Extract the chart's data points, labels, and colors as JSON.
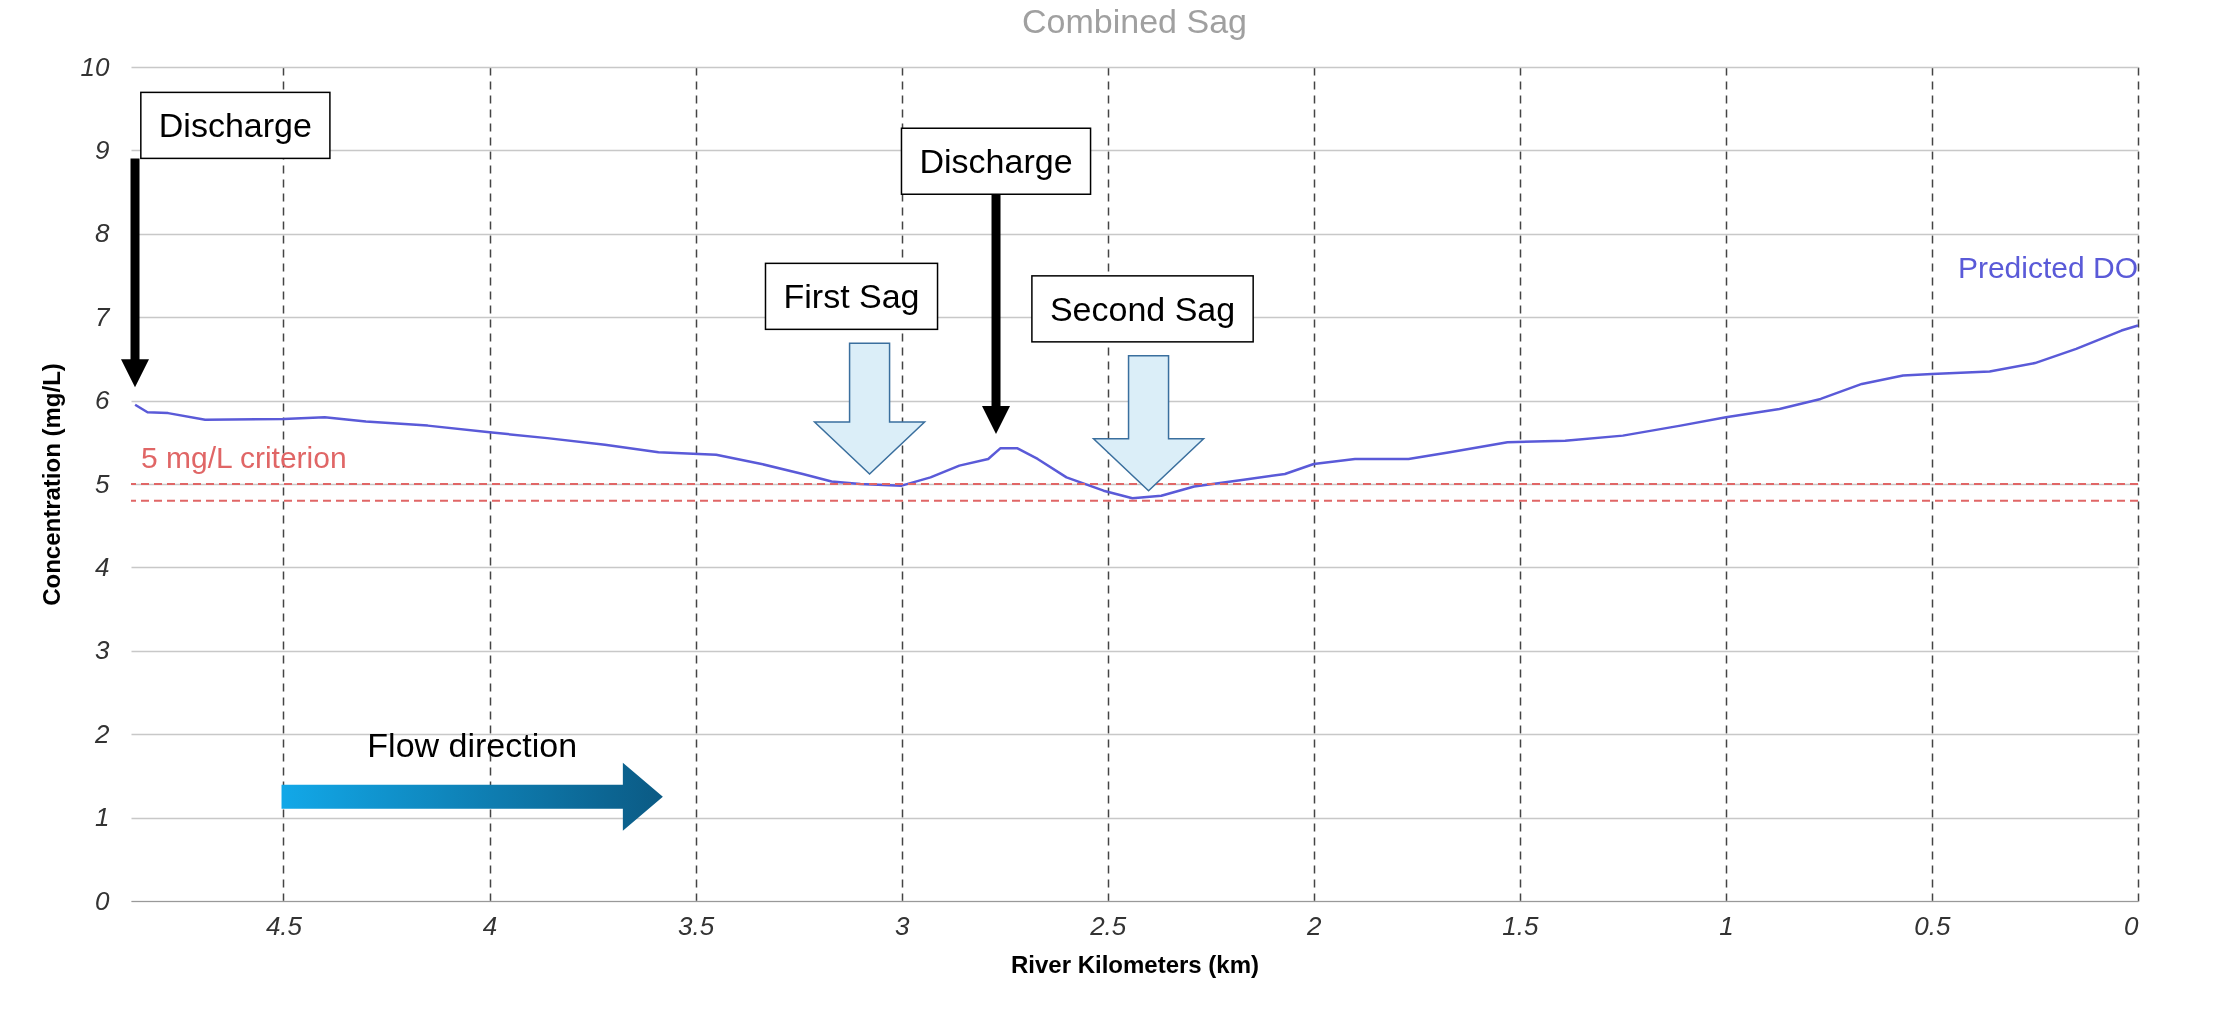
{
  "chart_data": {
    "type": "line",
    "title": "Combined Sag",
    "xlabel": "River Kilometers (km)",
    "ylabel": "Concentration (mg/L)",
    "xlim": [
      4.87,
      0
    ],
    "xticks": [
      4.5,
      4,
      3.5,
      3,
      2.5,
      2,
      1.5,
      1,
      0.5,
      0
    ],
    "ylim": [
      0,
      10
    ],
    "yticks": [
      0,
      1,
      2,
      3,
      4,
      5,
      6,
      7,
      8,
      9,
      10
    ],
    "grid": true,
    "line_style": "solid",
    "marker": "none",
    "series": [
      {
        "name": "Predicted DO",
        "color": "#5a5ad8",
        "x": [
          4.86,
          4.83,
          4.78,
          4.69,
          4.5,
          4.4,
          4.3,
          4.15,
          4.0,
          3.86,
          3.72,
          3.59,
          3.45,
          3.34,
          3.24,
          3.17,
          3.1,
          3.0,
          2.93,
          2.86,
          2.79,
          2.76,
          2.72,
          2.67,
          2.6,
          2.51,
          2.44,
          2.37,
          2.29,
          2.17,
          2.07,
          2.0,
          1.9,
          1.77,
          1.67,
          1.53,
          1.39,
          1.25,
          1.11,
          1.0,
          0.87,
          0.77,
          0.67,
          0.57,
          0.5,
          0.36,
          0.25,
          0.15,
          0.04,
          0
        ],
        "values": [
          5.95,
          5.86,
          5.85,
          5.77,
          5.78,
          5.8,
          5.75,
          5.7,
          5.62,
          5.55,
          5.47,
          5.38,
          5.35,
          5.24,
          5.12,
          5.03,
          5.0,
          4.98,
          5.08,
          5.22,
          5.3,
          5.43,
          5.43,
          5.3,
          5.08,
          4.92,
          4.83,
          4.86,
          4.97,
          5.05,
          5.12,
          5.24,
          5.3,
          5.3,
          5.38,
          5.5,
          5.52,
          5.58,
          5.7,
          5.8,
          5.9,
          6.02,
          6.2,
          6.3,
          6.32,
          6.35,
          6.45,
          6.62,
          6.84,
          6.9
        ]
      }
    ],
    "ref_lines": [
      {
        "axis": "y",
        "value": 5,
        "label": "5 mg/L criterion",
        "color": "#e06666",
        "line_style": "dashed"
      },
      {
        "axis": "y",
        "value": 4.8,
        "label": null,
        "color": "#e06666",
        "line_style": "dashed"
      }
    ],
    "annotations": [
      "Discharge",
      "Discharge",
      "First Sag",
      "Second Sag",
      "Flow direction"
    ]
  }
}
